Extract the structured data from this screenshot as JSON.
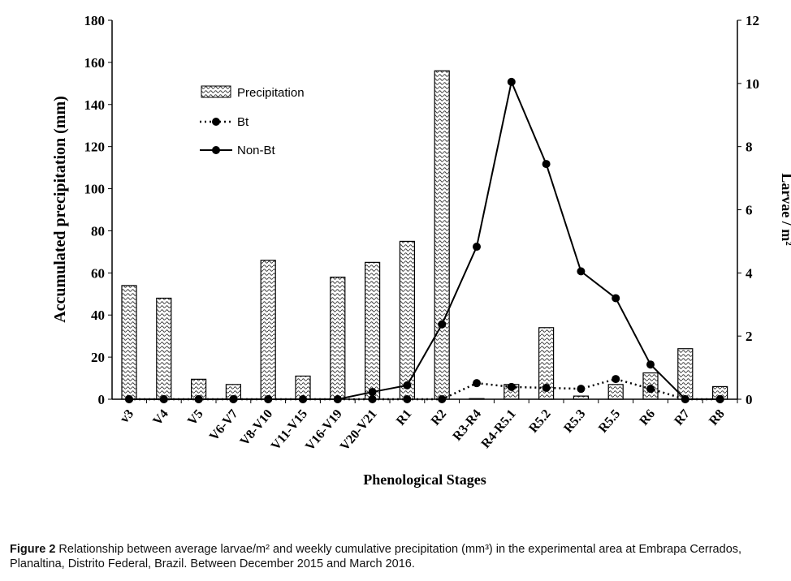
{
  "chart_data": {
    "type": "bar",
    "xlabel": "Phenological Stages",
    "ylabel": "Accumulated precipitation (mm)",
    "y2label": "Larvae / m²",
    "ylim": [
      0,
      180
    ],
    "y2lim": [
      0,
      12
    ],
    "yticks": [
      0,
      20,
      40,
      60,
      80,
      100,
      120,
      140,
      160,
      180
    ],
    "y2ticks": [
      0,
      2,
      4,
      6,
      8,
      10,
      12
    ],
    "categories": [
      "v3",
      "V4",
      "V5",
      "V6-V7",
      "V8-V10",
      "V11-V15",
      "V16-V19",
      "V20-V21",
      "R1",
      "R2",
      "R3-R4",
      "R4-R5.1",
      "R5.2",
      "R5.3",
      "R5.5",
      "R6",
      "R7",
      "R8"
    ],
    "legend_position": "top-left",
    "series": [
      {
        "name": "Precipitation",
        "type": "bar",
        "axis": "left",
        "values": [
          54,
          48,
          9.5,
          7,
          66,
          11,
          58,
          65,
          75,
          156,
          0.3,
          7,
          34,
          1.5,
          7,
          12.5,
          24,
          6
        ]
      },
      {
        "name": "Bt",
        "type": "line",
        "style": "dotted",
        "axis": "right",
        "values": [
          0,
          0,
          0,
          0,
          0,
          0,
          0,
          0,
          0,
          0,
          0.51,
          0.39,
          0.36,
          0.33,
          0.64,
          0.33,
          0,
          0
        ]
      },
      {
        "name": "Non-Bt",
        "type": "line",
        "style": "solid",
        "axis": "right",
        "values": [
          0,
          0,
          0,
          0,
          0,
          0,
          0,
          0.23,
          0.44,
          2.37,
          4.83,
          10.05,
          7.45,
          4.05,
          3.2,
          1.1,
          0,
          0
        ]
      }
    ]
  },
  "caption": {
    "label": "Figure 2",
    "text": " Relationship between average larvae/m² and weekly cumulative precipitation (mm³) in the experimental area at Embrapa Cerrados, Planaltina, Distrito Federal, Brazil. Between December 2015 and March 2016."
  }
}
